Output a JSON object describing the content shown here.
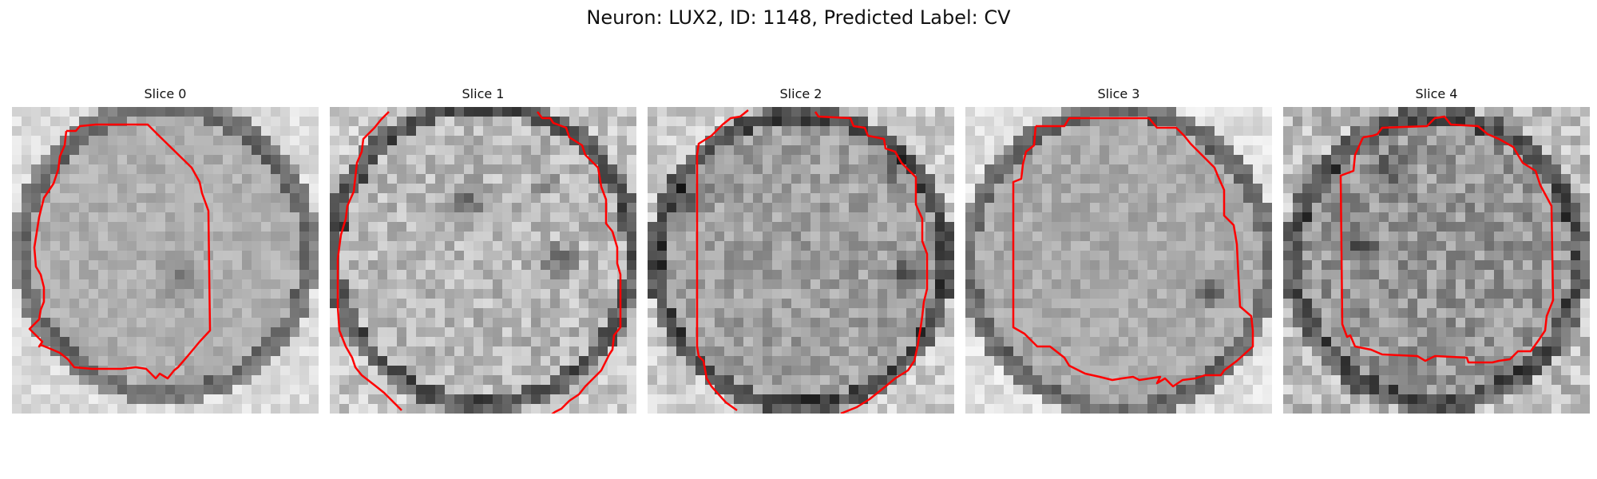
{
  "figure": {
    "title": "Neuron: LUX2, ID: 1148, Predicted Label: CV"
  },
  "contour_color": "#ff0000",
  "panels": [
    {
      "title": "Slice 0"
    },
    {
      "title": "Slice 1"
    },
    {
      "title": "Slice 2"
    },
    {
      "title": "Slice 3"
    },
    {
      "title": "Slice 4"
    }
  ]
}
